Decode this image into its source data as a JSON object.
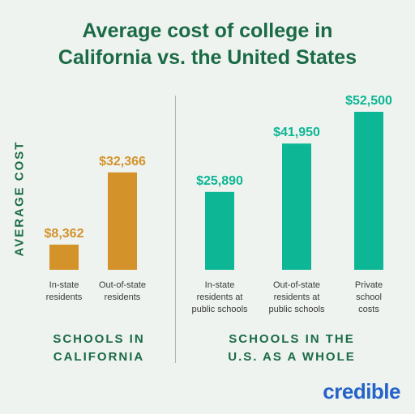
{
  "title_lines": [
    "Average cost of college in",
    "California vs. the United States"
  ],
  "ylabel": "AVERAGE COST",
  "groups": [
    {
      "label_lines": [
        "SCHOOLS IN",
        "CALIFORNIA"
      ]
    },
    {
      "label_lines": [
        "SCHOOLS IN THE",
        "U.S. AS A WHOLE"
      ]
    }
  ],
  "brand": "credible",
  "colors": {
    "california": "#d4922a",
    "us": "#0db694",
    "title": "#1b6a46",
    "text": "#3a3a3a"
  },
  "chart_data": {
    "type": "bar",
    "title": "Average cost of college in California vs. the United States",
    "ylabel": "AVERAGE COST",
    "series": [
      {
        "group": "SCHOOLS IN CALIFORNIA",
        "categories": [
          [
            "In-state",
            "residents"
          ],
          [
            "Out-of-state",
            "residents"
          ]
        ],
        "values": [
          8362,
          32366
        ],
        "labels": [
          "$8,362",
          "$32,366"
        ],
        "color": "#d4922a"
      },
      {
        "group": "SCHOOLS IN THE U.S. AS A WHOLE",
        "categories": [
          [
            "In-state",
            "residents at",
            "public schools"
          ],
          [
            "Out-of-state",
            "residents at",
            "public schools"
          ],
          [
            "Private",
            "school",
            "costs"
          ]
        ],
        "values": [
          25890,
          41950,
          52500
        ],
        "labels": [
          "$25,890",
          "$41,950",
          "$52,500"
        ],
        "color": "#0db694"
      }
    ]
  }
}
